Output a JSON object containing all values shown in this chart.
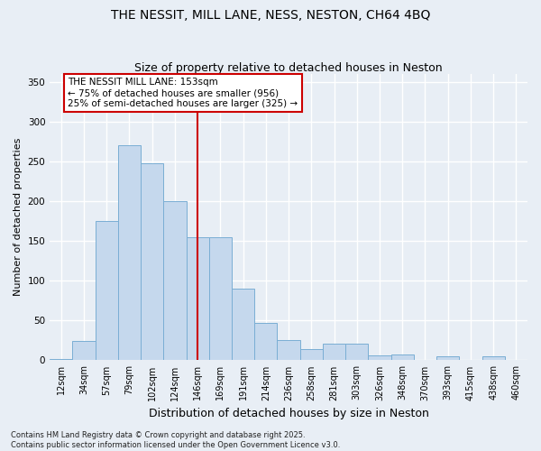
{
  "title": "THE NESSIT, MILL LANE, NESS, NESTON, CH64 4BQ",
  "subtitle": "Size of property relative to detached houses in Neston",
  "xlabel": "Distribution of detached houses by size in Neston",
  "ylabel": "Number of detached properties",
  "footnote": "Contains HM Land Registry data © Crown copyright and database right 2025.\nContains public sector information licensed under the Open Government Licence v3.0.",
  "bin_labels": [
    "12sqm",
    "34sqm",
    "57sqm",
    "79sqm",
    "102sqm",
    "124sqm",
    "146sqm",
    "169sqm",
    "191sqm",
    "214sqm",
    "236sqm",
    "258sqm",
    "281sqm",
    "303sqm",
    "326sqm",
    "348sqm",
    "370sqm",
    "393sqm",
    "415sqm",
    "438sqm",
    "460sqm"
  ],
  "bar_heights": [
    2,
    24,
    175,
    270,
    248,
    200,
    155,
    155,
    90,
    47,
    25,
    14,
    21,
    21,
    6,
    7,
    1,
    5,
    1,
    5,
    1
  ],
  "bar_color": "#c5d8ed",
  "bar_edge_color": "#7aaed4",
  "vline_x_index": 6,
  "vline_color": "#cc0000",
  "annotation_title": "THE NESSIT MILL LANE: 153sqm",
  "annotation_line1": "← 75% of detached houses are smaller (956)",
  "annotation_line2": "25% of semi-detached houses are larger (325) →",
  "annotation_box_color": "#cc0000",
  "annotation_bg": "#ffffff",
  "ylim": [
    0,
    360
  ],
  "yticks": [
    0,
    50,
    100,
    150,
    200,
    250,
    300,
    350
  ],
  "bg_color": "#e8eef5",
  "grid_color": "#ffffff",
  "title_fontsize": 10,
  "subtitle_fontsize": 9,
  "xlabel_fontsize": 9,
  "ylabel_fontsize": 8,
  "tick_fontsize": 7,
  "annotation_fontsize": 7.5,
  "footnote_fontsize": 6
}
